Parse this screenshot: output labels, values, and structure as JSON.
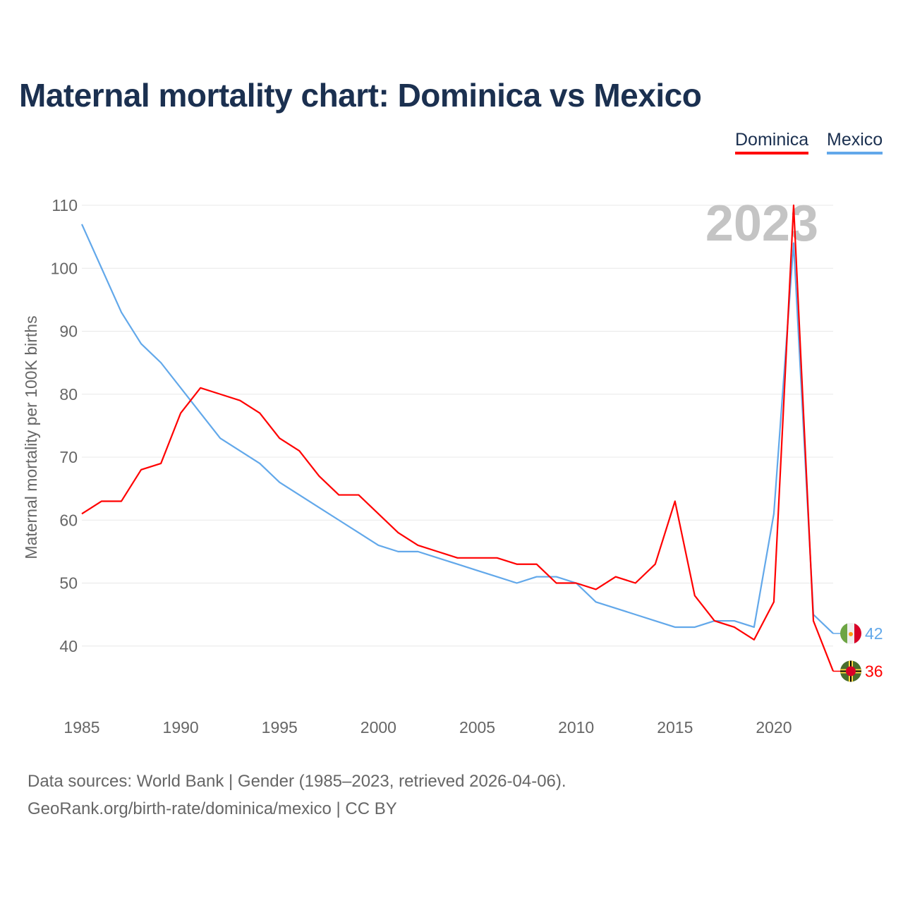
{
  "title": "Maternal mortality chart: Dominica vs Mexico",
  "footer": {
    "line1": "Data sources: World Bank | Gender (1985–2023, retrieved 2026-04-06).",
    "line2": "GeoRank.org/birth-rate/dominica/mexico | CC BY"
  },
  "chart_data": {
    "type": "line",
    "title": "Maternal mortality chart: Dominica vs Mexico",
    "ylabel": "Maternal mortality per 100K births",
    "xlabel": "",
    "year_label": "2023",
    "xlim": [
      1985,
      2023
    ],
    "ylim": [
      30,
      110
    ],
    "x_ticks": [
      1985,
      1990,
      1995,
      2000,
      2005,
      2010,
      2015,
      2020
    ],
    "y_ticks": [
      40,
      50,
      60,
      70,
      80,
      90,
      100,
      110
    ],
    "grid": true,
    "legend_position": "top-right",
    "x": [
      1985,
      1986,
      1987,
      1988,
      1989,
      1990,
      1991,
      1992,
      1993,
      1994,
      1995,
      1996,
      1997,
      1998,
      1999,
      2000,
      2001,
      2002,
      2003,
      2004,
      2005,
      2006,
      2007,
      2008,
      2009,
      2010,
      2011,
      2012,
      2013,
      2014,
      2015,
      2016,
      2017,
      2018,
      2019,
      2020,
      2021,
      2022,
      2023
    ],
    "series": [
      {
        "name": "Dominica",
        "color": "#ff0000",
        "end_label": "36",
        "flag": "dominica-flag",
        "values": [
          61,
          63,
          63,
          68,
          69,
          77,
          81,
          80,
          79,
          77,
          73,
          71,
          67,
          64,
          64,
          61,
          58,
          56,
          55,
          54,
          54,
          54,
          53,
          53,
          50,
          50,
          49,
          51,
          50,
          53,
          63,
          48,
          44,
          43,
          41,
          47,
          110,
          44,
          36
        ]
      },
      {
        "name": "Mexico",
        "color": "#62a8ea",
        "end_label": "42",
        "flag": "mexico-flag",
        "values": [
          107,
          100,
          93,
          88,
          85,
          81,
          77,
          73,
          71,
          69,
          66,
          64,
          62,
          60,
          58,
          56,
          55,
          55,
          54,
          53,
          52,
          51,
          50,
          51,
          51,
          50,
          47,
          46,
          45,
          44,
          43,
          43,
          44,
          44,
          43,
          61,
          104,
          45,
          42
        ]
      }
    ]
  }
}
